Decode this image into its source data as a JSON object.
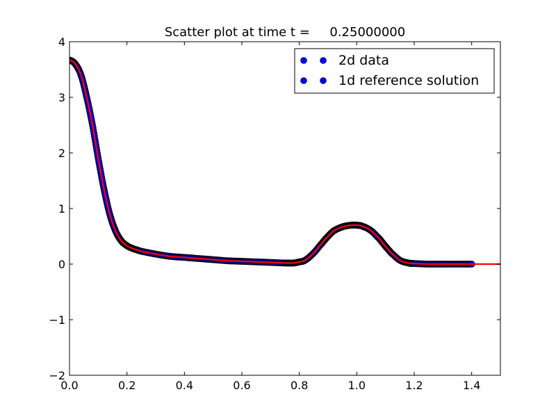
{
  "chart_data": {
    "type": "scatter",
    "title": "Scatter plot at time t =     0.25000000",
    "xlabel": "",
    "ylabel": "",
    "xlim": [
      0.0,
      1.5
    ],
    "ylim": [
      -2,
      4
    ],
    "xticks": [
      "0.0",
      "0.2",
      "0.4",
      "0.6",
      "0.8",
      "1.0",
      "1.2",
      "1.4"
    ],
    "yticks": [
      "−2",
      "−1",
      "0",
      "1",
      "2",
      "3",
      "4"
    ],
    "grid": false,
    "legend": {
      "placement": "top-right",
      "entries": [
        "2d data",
        "1d reference solution"
      ]
    },
    "colors": {
      "scatter_fill": "#0000ff",
      "scatter_edge": "#000000",
      "reference_line": "#ff0000"
    },
    "series": [
      {
        "name": "2d data",
        "kind": "points",
        "x": [
          0.0,
          0.02,
          0.04,
          0.06,
          0.08,
          0.1,
          0.12,
          0.14,
          0.16,
          0.18,
          0.2,
          0.22,
          0.25,
          0.3,
          0.35,
          0.4,
          0.45,
          0.5,
          0.55,
          0.6,
          0.65,
          0.7,
          0.75,
          0.78,
          0.8,
          0.82,
          0.85,
          0.88,
          0.9,
          0.92,
          0.95,
          0.98,
          1.0,
          1.02,
          1.05,
          1.08,
          1.1,
          1.12,
          1.15,
          1.18,
          1.2,
          1.25,
          1.3,
          1.35,
          1.4
        ],
        "y": [
          3.67,
          3.6,
          3.4,
          3.0,
          2.5,
          1.9,
          1.35,
          0.9,
          0.6,
          0.42,
          0.33,
          0.28,
          0.23,
          0.18,
          0.14,
          0.12,
          0.1,
          0.08,
          0.06,
          0.05,
          0.04,
          0.03,
          0.02,
          0.02,
          0.04,
          0.07,
          0.2,
          0.38,
          0.5,
          0.6,
          0.67,
          0.7,
          0.7,
          0.68,
          0.6,
          0.45,
          0.32,
          0.2,
          0.07,
          0.02,
          0.01,
          0.0,
          0.0,
          0.0,
          0.0
        ]
      },
      {
        "name": "1d reference solution",
        "kind": "line",
        "x": [
          0.0,
          0.02,
          0.04,
          0.06,
          0.08,
          0.1,
          0.12,
          0.14,
          0.16,
          0.18,
          0.2,
          0.22,
          0.25,
          0.3,
          0.35,
          0.4,
          0.45,
          0.5,
          0.55,
          0.6,
          0.65,
          0.7,
          0.75,
          0.78,
          0.8,
          0.82,
          0.85,
          0.88,
          0.9,
          0.92,
          0.95,
          0.98,
          1.0,
          1.02,
          1.05,
          1.08,
          1.1,
          1.12,
          1.15,
          1.18,
          1.2,
          1.25,
          1.3,
          1.35,
          1.4,
          1.45,
          1.5
        ],
        "y": [
          3.67,
          3.6,
          3.4,
          3.0,
          2.5,
          1.9,
          1.35,
          0.9,
          0.6,
          0.42,
          0.33,
          0.28,
          0.23,
          0.18,
          0.14,
          0.12,
          0.1,
          0.08,
          0.06,
          0.05,
          0.04,
          0.03,
          0.02,
          0.02,
          0.04,
          0.07,
          0.2,
          0.38,
          0.5,
          0.6,
          0.67,
          0.7,
          0.7,
          0.68,
          0.6,
          0.45,
          0.32,
          0.2,
          0.07,
          0.02,
          0.01,
          0.0,
          0.0,
          0.0,
          0.0,
          0.0,
          0.0
        ]
      }
    ]
  }
}
